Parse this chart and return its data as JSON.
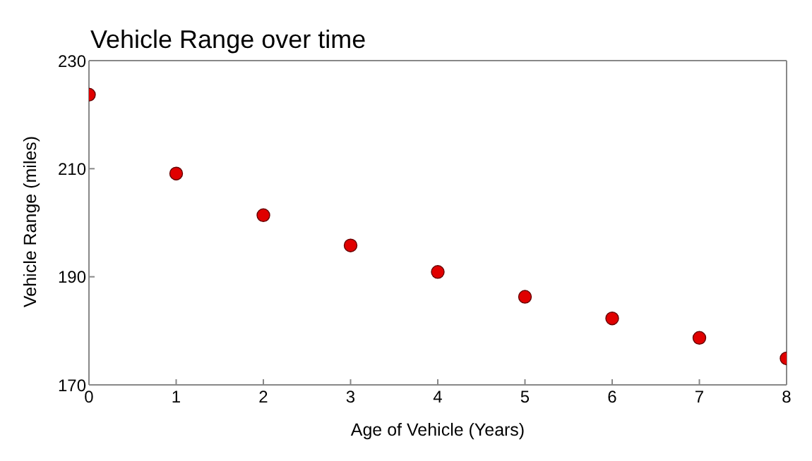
{
  "chart_data": {
    "type": "scatter",
    "title": "Vehicle Range over time",
    "xlabel": "Age of Vehicle (Years)",
    "ylabel": "Vehicle Range (miles)",
    "x": [
      0,
      1,
      2,
      3,
      4,
      5,
      6,
      7,
      8
    ],
    "series": [
      {
        "color": "#e00000",
        "values": [
          223.7,
          209.1,
          201.4,
          195.8,
          190.9,
          186.3,
          182.3,
          178.7,
          174.9
        ]
      }
    ],
    "xlim": [
      0,
      8
    ],
    "xticks": [
      0,
      1,
      2,
      3,
      4,
      5,
      6,
      7,
      8
    ],
    "ylim": [
      170,
      230
    ],
    "yticks": [
      170,
      190,
      210,
      230
    ],
    "marker": "circle"
  }
}
